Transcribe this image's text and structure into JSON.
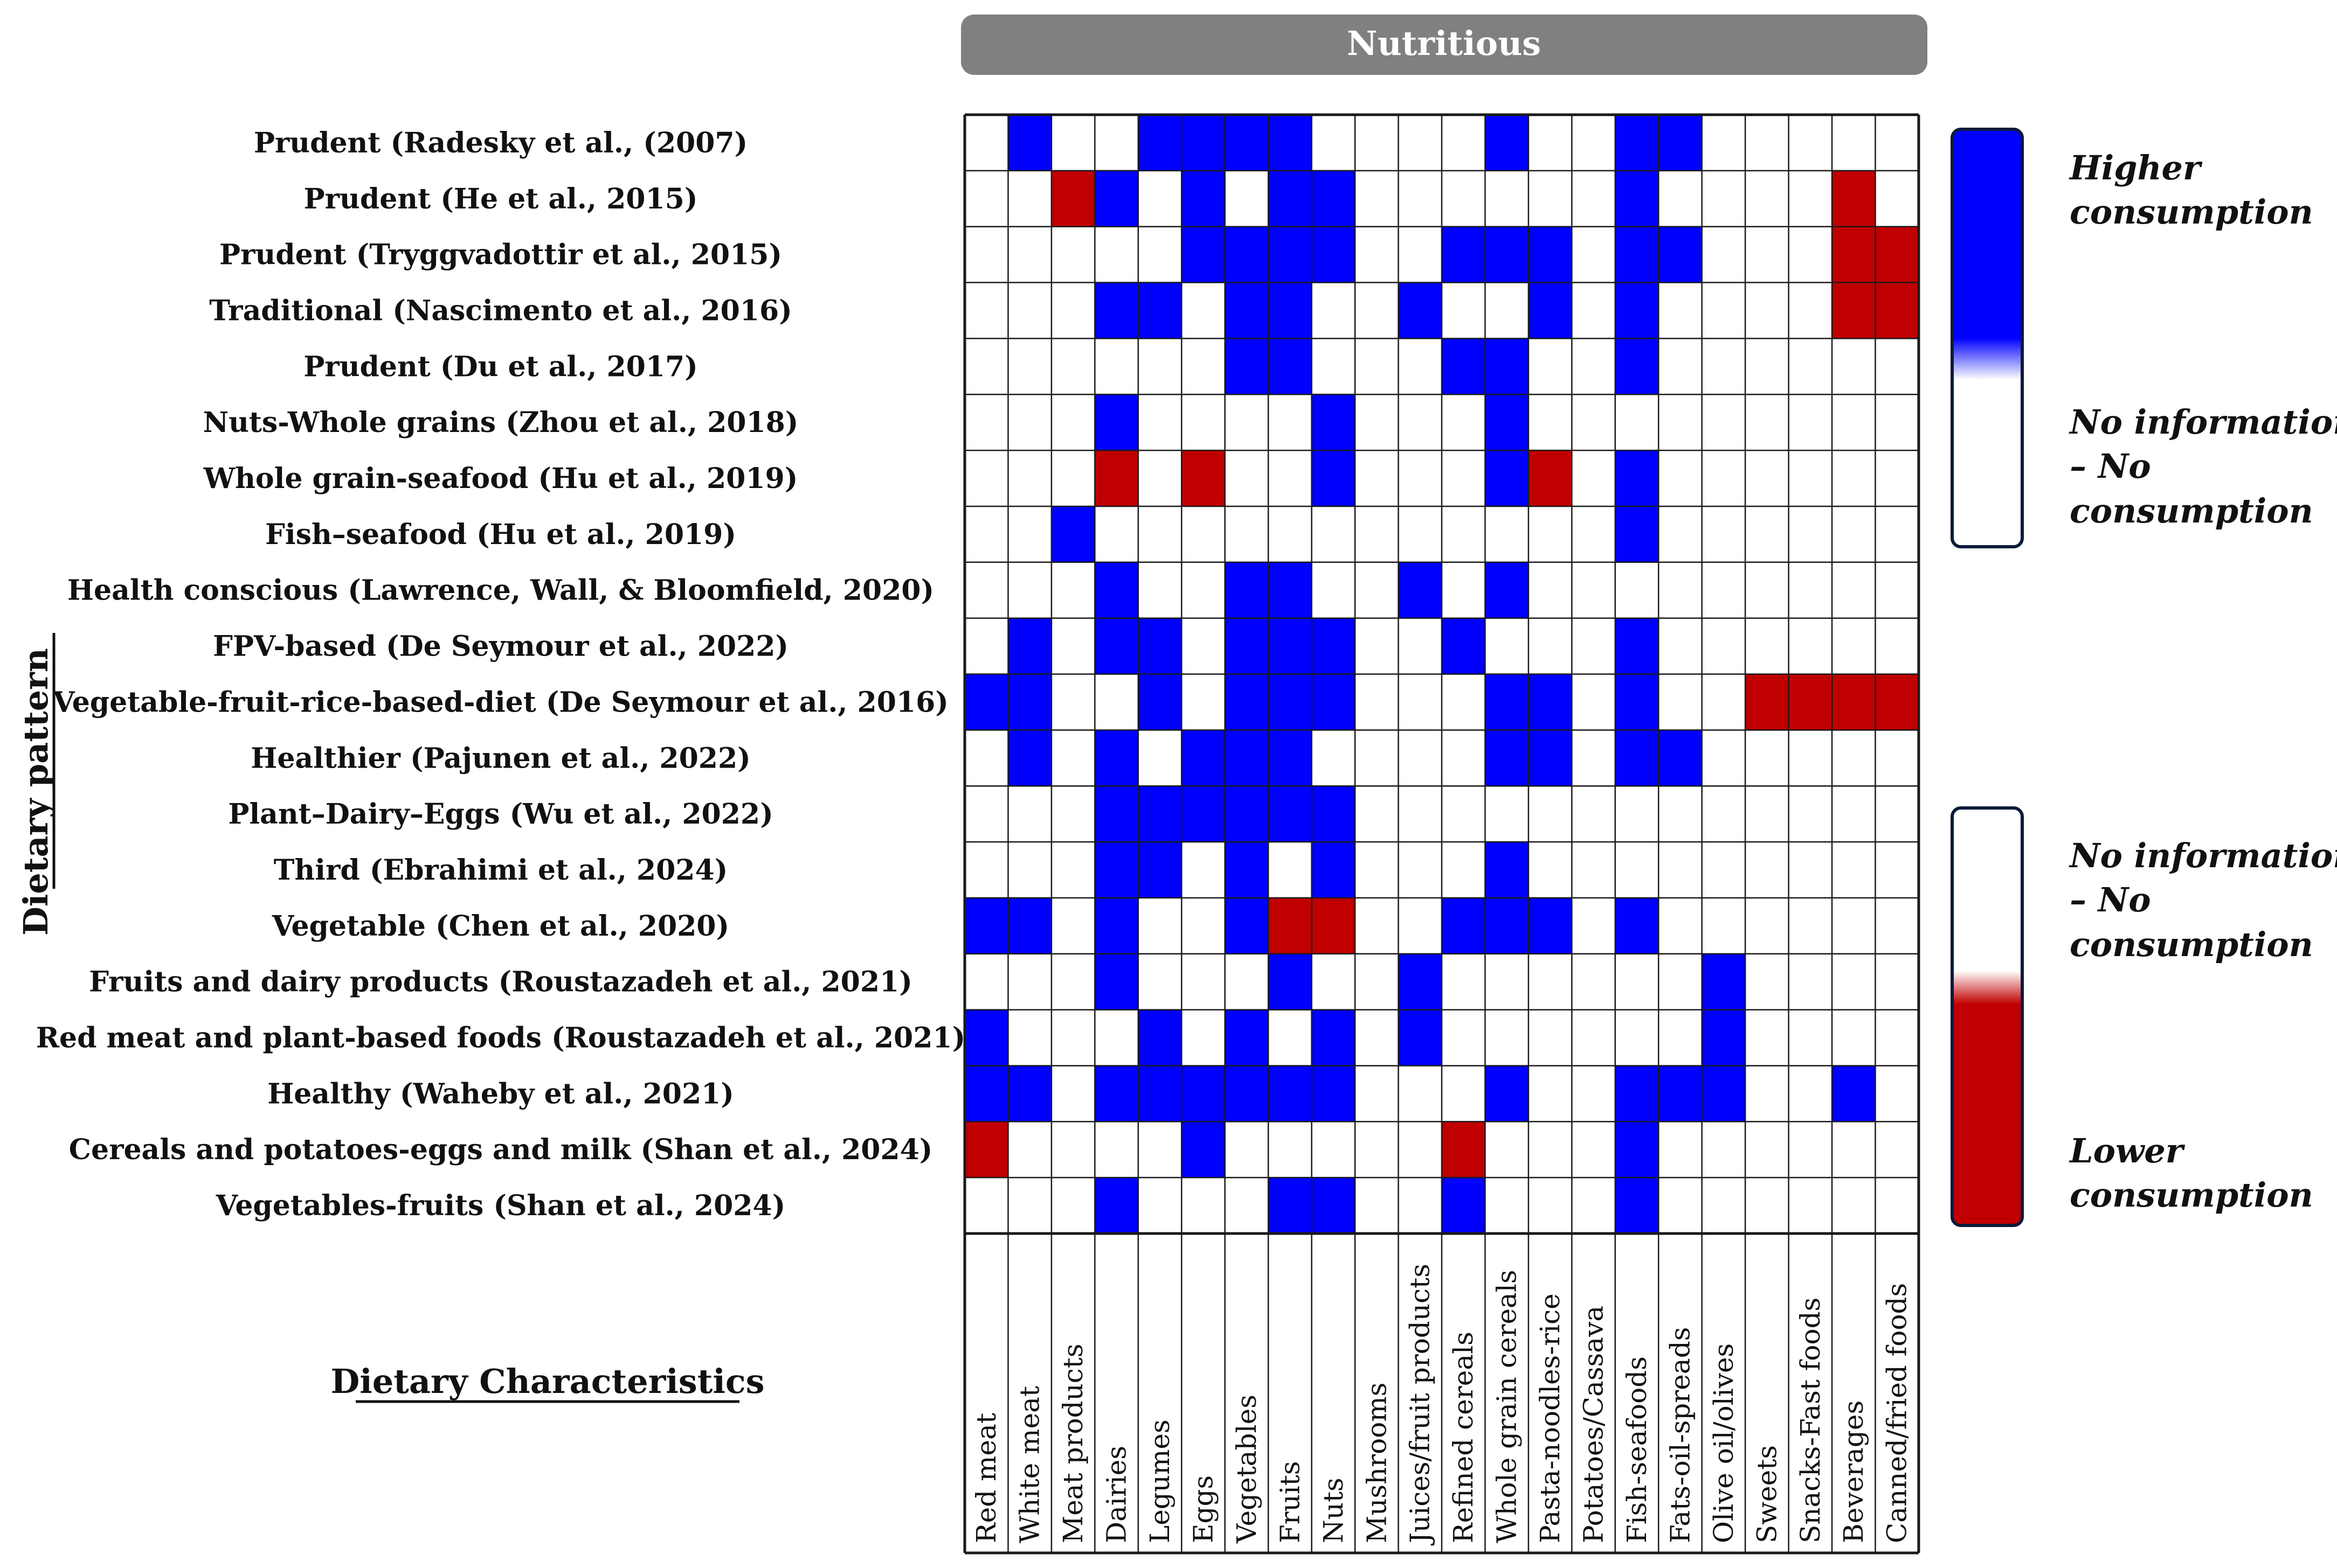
{
  "chart_data": {
    "type": "heatmap",
    "title": "Nutritious",
    "ylabel": "Dietary pattern",
    "xlabel": "Dietary Characteristics",
    "colors": {
      "higher": "#0000ff",
      "lower": "#c00000",
      "none": "#ffffff",
      "banner": "#808080",
      "grid": "#1a1a1a"
    },
    "legend": {
      "higher": [
        "Higher",
        "consumption"
      ],
      "none": [
        "No information",
        "– No",
        "consumption"
      ],
      "lower": [
        "Lower",
        "consumption"
      ]
    },
    "categories": [
      "Red meat",
      "White meat",
      "Meat products",
      "Dairies",
      "Legumes",
      "Eggs",
      "Vegetables",
      "Fruits",
      "Nuts",
      "Mushrooms",
      "Juices/fruit products",
      "Refined cereals",
      "Whole grain cereals",
      "Pasta-noodles-rice",
      "Potatoes/Cassava",
      "Fish-seafoods",
      "Fats-oil-spreads",
      "Olive oil/olives",
      "Sweets",
      "Snacks-Fast foods",
      "Beverages",
      "Canned/fried foods"
    ],
    "rows": [
      "Prudent (Radesky et al., (2007)",
      "Prudent (He et al., 2015)",
      "Prudent (Tryggvadottir et al., 2015)",
      "Traditional (Nascimento et al., 2016)",
      "Prudent (Du et al., 2017)",
      "Nuts-Whole grains (Zhou et al., 2018)",
      "Whole grain-seafood (Hu et al., 2019)",
      "Fish–seafood (Hu et al., 2019)",
      "Health conscious (Lawrence, Wall, & Bloomfield, 2020)",
      "FPV-based (De Seymour et al., 2022)",
      "Vegetable-fruit-rice-based-diet (De Seymour et al., 2016)",
      "Healthier (Pajunen et al., 2022)",
      "Plant–Dairy–Eggs (Wu et al., 2022)",
      "Third (Ebrahimi et al., 2024)",
      "Vegetable (Chen et al., 2020)",
      "Fruits and dairy products (Roustazadeh et al., 2021)",
      "Red meat and plant-based foods (Roustazadeh et al., 2021)",
      "Healthy (Waheby et al., 2021)",
      "Cereals and potatoes-eggs and milk (Shan et al., 2024)",
      "Vegetables-fruits (Shan et al., 2024)"
    ],
    "values": [
      [
        0,
        1,
        0,
        0,
        1,
        1,
        1,
        1,
        0,
        0,
        0,
        0,
        1,
        0,
        0,
        1,
        1,
        0,
        0,
        0,
        0,
        0
      ],
      [
        0,
        0,
        -1,
        1,
        0,
        1,
        0,
        1,
        1,
        0,
        0,
        0,
        0,
        0,
        0,
        1,
        0,
        0,
        0,
        0,
        -1,
        0
      ],
      [
        0,
        0,
        0,
        0,
        0,
        1,
        1,
        1,
        1,
        0,
        0,
        1,
        1,
        1,
        0,
        1,
        1,
        0,
        0,
        0,
        -1,
        -1
      ],
      [
        0,
        0,
        0,
        1,
        1,
        0,
        1,
        1,
        0,
        0,
        1,
        0,
        0,
        1,
        0,
        1,
        0,
        0,
        0,
        0,
        -1,
        -1
      ],
      [
        0,
        0,
        0,
        0,
        0,
        0,
        1,
        1,
        0,
        0,
        0,
        1,
        1,
        0,
        0,
        1,
        0,
        0,
        0,
        0,
        0,
        0
      ],
      [
        0,
        0,
        0,
        1,
        0,
        0,
        0,
        0,
        1,
        0,
        0,
        0,
        1,
        0,
        0,
        0,
        0,
        0,
        0,
        0,
        0,
        0
      ],
      [
        0,
        0,
        0,
        -1,
        0,
        -1,
        0,
        0,
        1,
        0,
        0,
        0,
        1,
        -1,
        0,
        1,
        0,
        0,
        0,
        0,
        0,
        0
      ],
      [
        0,
        0,
        1,
        0,
        0,
        0,
        0,
        0,
        0,
        0,
        0,
        0,
        0,
        0,
        0,
        1,
        0,
        0,
        0,
        0,
        0,
        0
      ],
      [
        0,
        0,
        0,
        1,
        0,
        0,
        1,
        1,
        0,
        0,
        1,
        0,
        1,
        0,
        0,
        0,
        0,
        0,
        0,
        0,
        0,
        0
      ],
      [
        0,
        1,
        0,
        1,
        1,
        0,
        1,
        1,
        1,
        0,
        0,
        1,
        0,
        0,
        0,
        1,
        0,
        0,
        0,
        0,
        0,
        0
      ],
      [
        1,
        1,
        0,
        0,
        1,
        0,
        1,
        1,
        1,
        0,
        0,
        0,
        1,
        1,
        0,
        1,
        0,
        0,
        -1,
        -1,
        -1,
        -1
      ],
      [
        0,
        1,
        0,
        1,
        0,
        1,
        1,
        1,
        0,
        0,
        0,
        0,
        1,
        1,
        0,
        1,
        1,
        0,
        0,
        0,
        0,
        0
      ],
      [
        0,
        0,
        0,
        1,
        1,
        1,
        1,
        1,
        1,
        0,
        0,
        0,
        0,
        0,
        0,
        0,
        0,
        0,
        0,
        0,
        0,
        0
      ],
      [
        0,
        0,
        0,
        1,
        1,
        0,
        1,
        0,
        1,
        0,
        0,
        0,
        1,
        0,
        0,
        0,
        0,
        0,
        0,
        0,
        0,
        0
      ],
      [
        1,
        1,
        0,
        1,
        0,
        0,
        1,
        -1,
        -1,
        0,
        0,
        1,
        1,
        1,
        0,
        1,
        0,
        0,
        0,
        0,
        0,
        0
      ],
      [
        0,
        0,
        0,
        1,
        0,
        0,
        0,
        1,
        0,
        0,
        1,
        0,
        0,
        0,
        0,
        0,
        0,
        1,
        0,
        0,
        0,
        0
      ],
      [
        1,
        0,
        0,
        0,
        1,
        0,
        1,
        0,
        1,
        0,
        1,
        0,
        0,
        0,
        0,
        0,
        0,
        1,
        0,
        0,
        0,
        0
      ],
      [
        1,
        1,
        0,
        1,
        1,
        1,
        1,
        1,
        1,
        0,
        0,
        0,
        1,
        0,
        0,
        1,
        1,
        1,
        0,
        0,
        1,
        0
      ],
      [
        -1,
        0,
        0,
        0,
        0,
        1,
        0,
        0,
        0,
        0,
        0,
        -1,
        0,
        0,
        0,
        1,
        0,
        0,
        0,
        0,
        0,
        0
      ],
      [
        0,
        0,
        0,
        1,
        0,
        0,
        0,
        1,
        1,
        0,
        0,
        1,
        0,
        0,
        0,
        1,
        0,
        0,
        0,
        0,
        0,
        0
      ]
    ]
  }
}
